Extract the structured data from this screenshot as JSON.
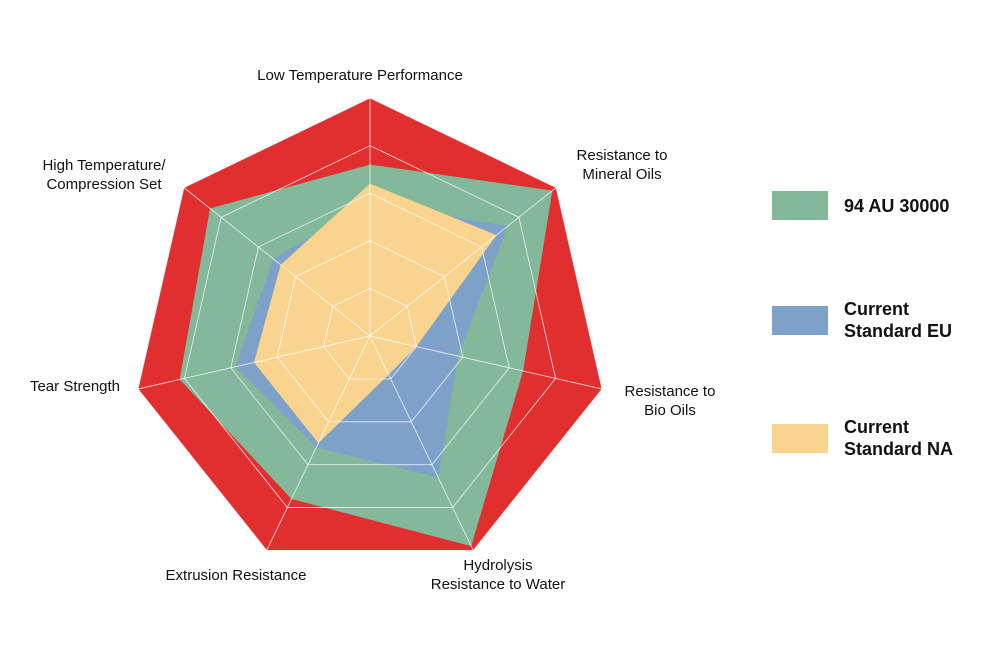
{
  "chart_data": {
    "type": "radar",
    "title": "",
    "axes": [
      [
        "Low Temperature Performance"
      ],
      [
        "Resistance to",
        "Mineral Oils"
      ],
      [
        "Resistance to",
        "Bio Oils"
      ],
      [
        "Hydrolysis",
        "Resistance to Water"
      ],
      [
        "Extrusion Resistance"
      ],
      [
        "Tear Strength"
      ],
      [
        "High Temperature/",
        "Compression Set"
      ]
    ],
    "rmax": 5,
    "gridlines": [
      1,
      2,
      3,
      4,
      5
    ],
    "series": [
      {
        "name": "94 AU 30000",
        "name_lines": [
          "94 AU 30000"
        ],
        "color": "#83b89b",
        "values": [
          3.6,
          4.9,
          3.3,
          4.9,
          3.8,
          4.1,
          4.3
        ]
      },
      {
        "name": "Current Standard EU",
        "name_lines": [
          "Current",
          "Standard EU"
        ],
        "color": "#7ea1c9",
        "values": [
          2.8,
          3.7,
          1.9,
          3.3,
          2.6,
          2.9,
          2.6
        ]
      },
      {
        "name": "Current Standard NA",
        "name_lines": [
          "Current",
          "Standard NA"
        ],
        "color": "#f8d48f",
        "values": [
          3.2,
          3.4,
          1.0,
          0.9,
          2.5,
          2.5,
          2.4
        ]
      }
    ],
    "background_color": "#e12e2e",
    "grid_color": "#ffffff",
    "legend": "right"
  }
}
